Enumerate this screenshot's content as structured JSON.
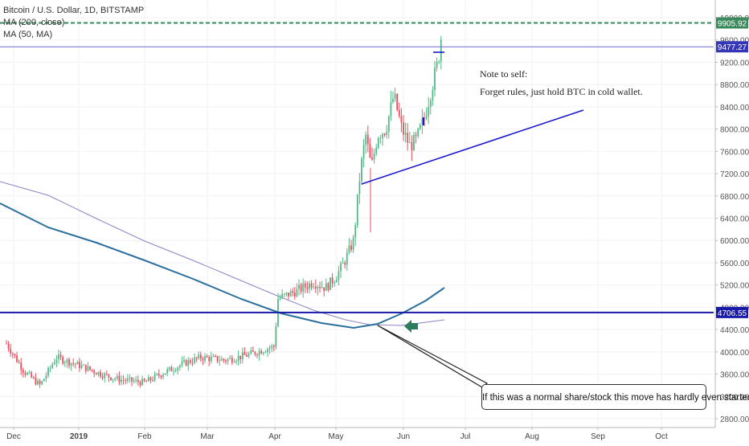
{
  "chart_data": {
    "type": "candlestick",
    "title": "Bitcoin / U.S. Dollar, 1D, BITSTAMP",
    "indicators": [
      {
        "name": "MA (200, close)",
        "color": "#2b6f9e"
      },
      {
        "name": "MA (50, MA)",
        "color": "#8a85c4"
      }
    ],
    "ylim": [
      2800,
      10000
    ],
    "y_ticks": [
      2800,
      3200,
      3600,
      4000,
      4400,
      4800,
      5200,
      5600,
      6000,
      6400,
      6800,
      7200,
      7600,
      8000,
      8400,
      8800,
      9200,
      9600,
      10000
    ],
    "y_tick_labels": [
      "2800.00",
      "3200.00",
      "3600.00",
      "4000.00",
      "4400.00",
      "4800.00",
      "5200.00",
      "5600.00",
      "6000.00",
      "6400.00",
      "6800.00",
      "7200.00",
      "7600.00",
      "8000.00",
      "8400.00",
      "8800.00",
      "9200.00",
      "9600.00",
      "10000.00"
    ],
    "x_ticks": [
      "Dec",
      "2019",
      "Feb",
      "Mar",
      "Apr",
      "May",
      "Jun",
      "Jul",
      "Aug",
      "Sep",
      "Oct"
    ],
    "price_labels": [
      {
        "text": "9905.92",
        "value": 9905.92,
        "color": "#3a8a5c"
      },
      {
        "text": "9477.27",
        "value": 9477.27,
        "color": "#3636b8"
      },
      {
        "text": "4706.55",
        "value": 4706.55,
        "color": "#1a1aa8"
      }
    ],
    "horizontal_lines": [
      {
        "value": 9905.92,
        "style": "dashed",
        "color": "#3a8a5c"
      },
      {
        "value": 9477.27,
        "style": "solid",
        "color": "#6a6ad0"
      },
      {
        "value": 4706.55,
        "style": "solid",
        "color": "#1a1aa8"
      }
    ],
    "annotations": {
      "note_title": "Note to self:",
      "note_body": "Forget rules, just hold BTC in cold wallet.",
      "callout": "If this was a normal share/stock this move has hardly even started."
    },
    "colors": {
      "up": "#53b987",
      "down": "#eb4d5c",
      "trendline": "#1a1acc",
      "arrow": "#2e7d5a"
    }
  }
}
